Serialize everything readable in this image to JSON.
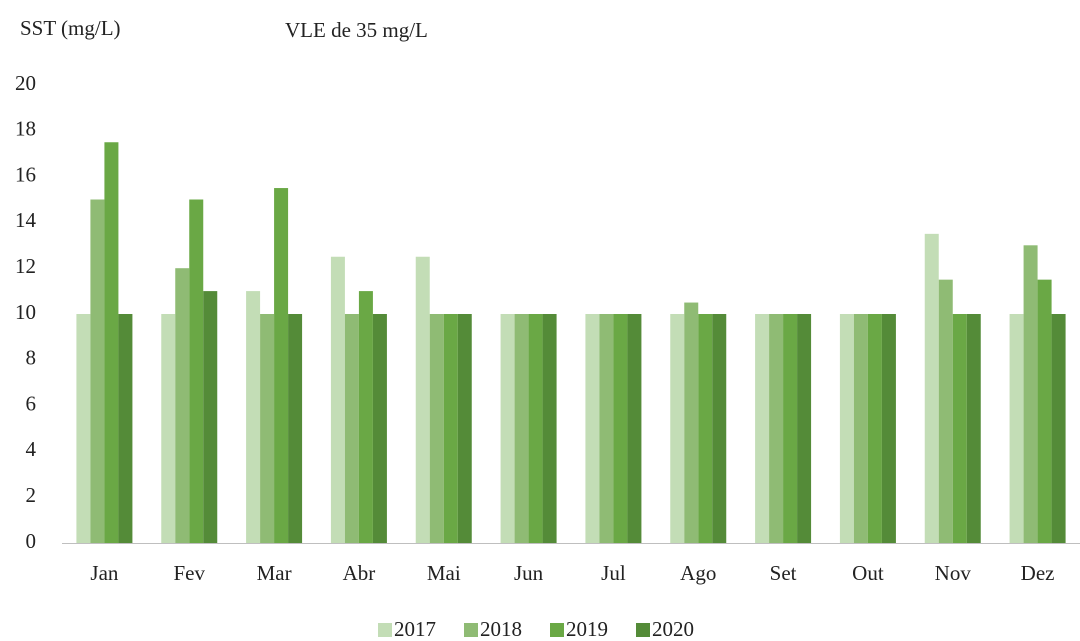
{
  "chart_data": {
    "type": "bar",
    "y_axis_label": "SST (mg/L)",
    "annotation": "VLE de 35 mg/L",
    "categories": [
      "Jan",
      "Fev",
      "Mar",
      "Abr",
      "Mai",
      "Jun",
      "Jul",
      "Ago",
      "Set",
      "Out",
      "Nov",
      "Dez"
    ],
    "series": [
      {
        "name": "2017",
        "color": "#c3ddb6",
        "values": [
          10,
          10,
          11,
          12.5,
          12.5,
          10,
          10,
          10,
          10,
          10,
          13.5,
          10
        ]
      },
      {
        "name": "2018",
        "color": "#8fbb74",
        "values": [
          15,
          12,
          10,
          10,
          10,
          10,
          10,
          10.5,
          10,
          10,
          11.5,
          13
        ]
      },
      {
        "name": "2019",
        "color": "#6aa845",
        "values": [
          17.5,
          15,
          15.5,
          11,
          10,
          10,
          10,
          10,
          10,
          10,
          10,
          11.5
        ]
      },
      {
        "name": "2020",
        "color": "#548b38",
        "values": [
          10,
          11,
          10,
          10,
          10,
          10,
          10,
          10,
          10,
          10,
          10,
          10
        ]
      }
    ],
    "ylim": [
      0,
      20
    ],
    "yticks": [
      0,
      2,
      4,
      6,
      8,
      10,
      12,
      14,
      16,
      18,
      20
    ],
    "grid": false,
    "legend": "bottom"
  }
}
